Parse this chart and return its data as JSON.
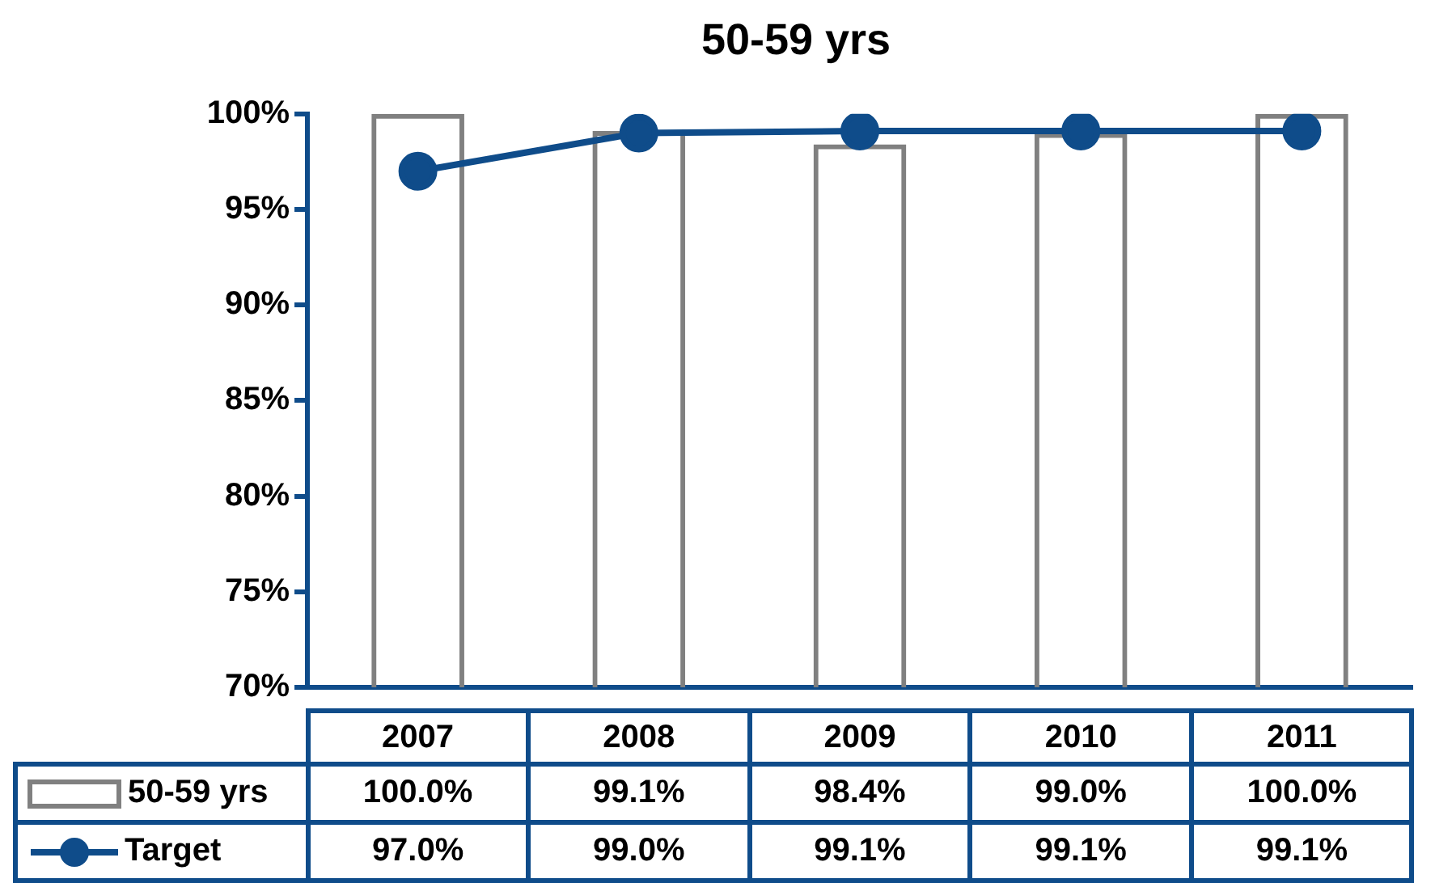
{
  "chart_data": {
    "type": "bar",
    "title": "50-59 yrs",
    "categories": [
      "2007",
      "2008",
      "2009",
      "2010",
      "2011"
    ],
    "series": [
      {
        "name": "50-59 yrs",
        "color": "#808080",
        "values": [
          100.0,
          99.1,
          98.4,
          99.0,
          100.0
        ],
        "value_labels": [
          "100.0%",
          "99.1%",
          "98.4%",
          "99.0%",
          "100.0%"
        ]
      },
      {
        "name": "Target",
        "type": "line",
        "color": "#0f4c8a",
        "values": [
          97.0,
          99.0,
          99.1,
          99.1,
          99.1
        ],
        "value_labels": [
          "97.0%",
          "99.0%",
          "99.1%",
          "99.1%",
          "99.1%"
        ]
      }
    ],
    "ylim": [
      70,
      100
    ],
    "yticks": [
      {
        "value": 70,
        "label": "70%"
      },
      {
        "value": 75,
        "label": "75%"
      },
      {
        "value": 80,
        "label": "80%"
      },
      {
        "value": 85,
        "label": "85%"
      },
      {
        "value": 90,
        "label": "90%"
      },
      {
        "value": 95,
        "label": "95%"
      },
      {
        "value": 100,
        "label": "100%"
      }
    ],
    "grid": false,
    "legend": "bottom",
    "marker": "circle",
    "line_style": "solid"
  }
}
